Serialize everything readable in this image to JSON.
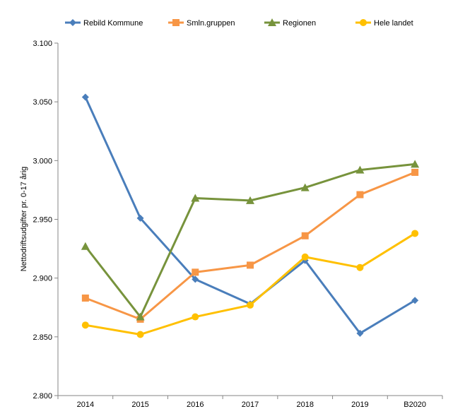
{
  "chart_data": {
    "type": "line",
    "title": "",
    "xlabel": "",
    "ylabel": "Nettodriftsudgifter pr. 0-17 årig",
    "categories": [
      "2014",
      "2015",
      "2016",
      "2017",
      "2018",
      "2019",
      "B2020"
    ],
    "ylim": [
      2800,
      3100
    ],
    "yticks": [
      "2.800",
      "2.850",
      "2.900",
      "2.950",
      "3.000",
      "3.050",
      "3.100"
    ],
    "grid": false,
    "legend_position": "top",
    "series": [
      {
        "name": "Rebild Kommune",
        "color": "#4a7ebb",
        "marker": "diamond",
        "values": [
          3054,
          2951,
          2899,
          2878,
          2915,
          2853,
          2881
        ]
      },
      {
        "name": "Smln.gruppen",
        "color": "#f79646",
        "marker": "square",
        "values": [
          2883,
          2865,
          2905,
          2911,
          2936,
          2971,
          2990
        ]
      },
      {
        "name": "Regionen",
        "color": "#77933c",
        "marker": "triangle",
        "values": [
          2927,
          2867,
          2968,
          2966,
          2977,
          2992,
          2997
        ]
      },
      {
        "name": "Hele landet",
        "color": "#ffc000",
        "marker": "circle",
        "values": [
          2860,
          2852,
          2867,
          2877,
          2918,
          2909,
          2938
        ]
      }
    ]
  }
}
